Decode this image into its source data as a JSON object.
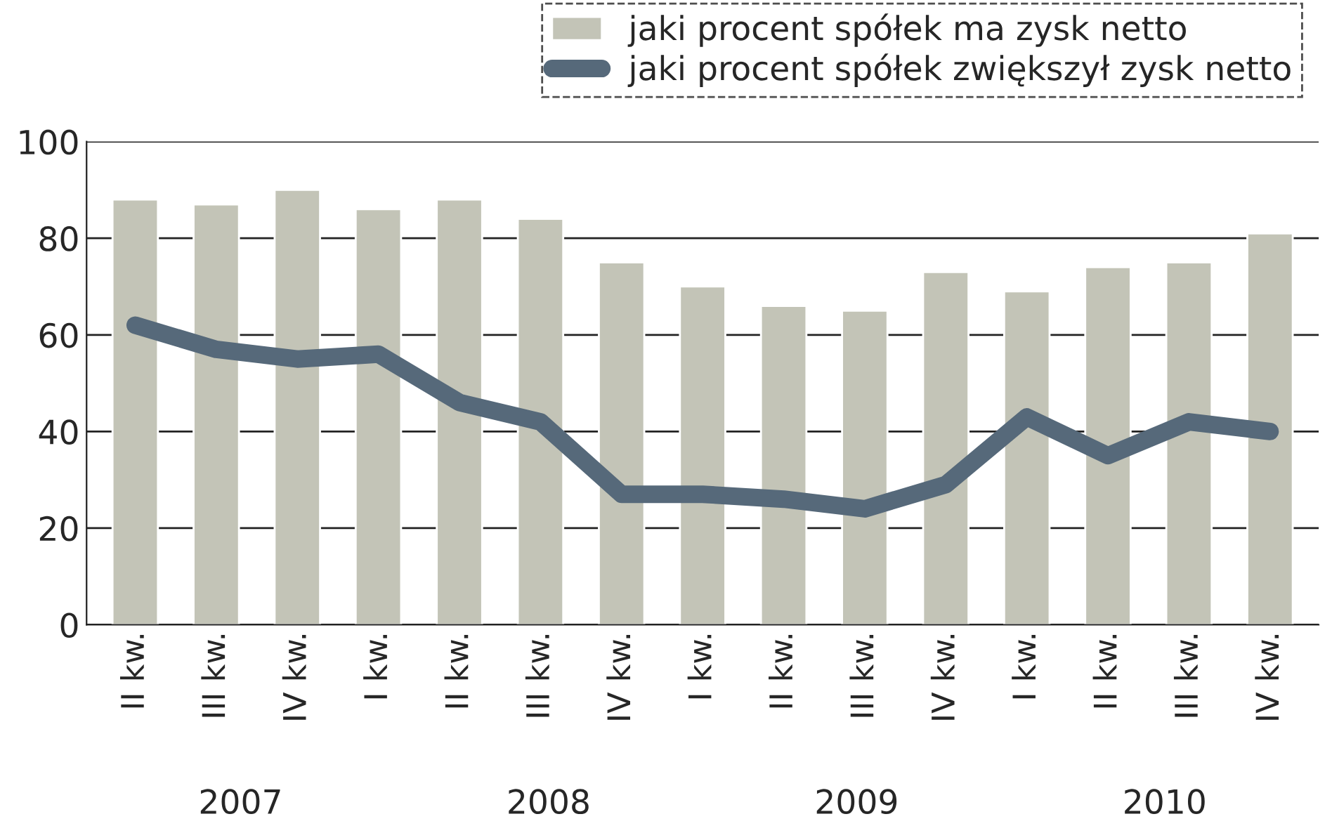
{
  "chart_data": {
    "type": "bar",
    "categories": [
      "II kw.",
      "III kw.",
      "IV kw.",
      "I kw.",
      "II kw.",
      "III kw.",
      "IV kw.",
      "I kw.",
      "II kw.",
      "III kw.",
      "IV kw.",
      "I kw.",
      "II kw.",
      "III kw.",
      "IV kw."
    ],
    "series": [
      {
        "name": "jaki procent spółek ma zysk netto",
        "color": "#c3c4b7",
        "values": [
          88,
          87,
          90,
          86,
          88,
          84,
          75,
          70,
          66,
          65,
          73,
          69,
          74,
          75,
          81
        ]
      },
      {
        "name": "jaki procent spółek zwiększył zysk netto",
        "type": "line",
        "color": "#56697a",
        "values": [
          62,
          57,
          55,
          56,
          46,
          42,
          27,
          27,
          26,
          24,
          29,
          43,
          35,
          42,
          40
        ]
      }
    ],
    "ylim": [
      0,
      100
    ],
    "yticks": [
      0,
      20,
      40,
      60,
      80,
      100
    ],
    "grid": "y",
    "legend": "top right",
    "marker": "none",
    "line_style": "solid",
    "annotations": [
      "2007",
      "2008",
      "2009",
      "2010"
    ]
  }
}
